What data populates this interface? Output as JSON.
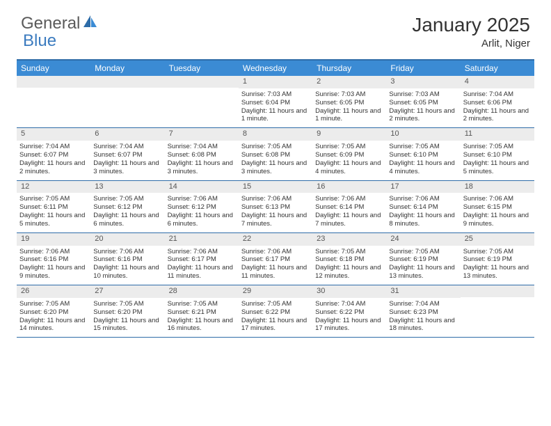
{
  "brand": {
    "part1": "General",
    "part2": "Blue"
  },
  "title": "January 2025",
  "location": "Arlit, Niger",
  "colors": {
    "header_bg": "#3b8bd4",
    "header_text": "#ffffff",
    "border": "#2e6ca8",
    "daynum_bg": "#ececec",
    "daynum_text": "#555555",
    "body_text": "#333333",
    "logo_gray": "#5a5a5a",
    "logo_blue": "#3b7bbf"
  },
  "day_names": [
    "Sunday",
    "Monday",
    "Tuesday",
    "Wednesday",
    "Thursday",
    "Friday",
    "Saturday"
  ],
  "weeks": [
    [
      {
        "empty": true
      },
      {
        "empty": true
      },
      {
        "empty": true
      },
      {
        "day": "1",
        "sunrise": "Sunrise: 7:03 AM",
        "sunset": "Sunset: 6:04 PM",
        "daylight": "Daylight: 11 hours and 1 minute."
      },
      {
        "day": "2",
        "sunrise": "Sunrise: 7:03 AM",
        "sunset": "Sunset: 6:05 PM",
        "daylight": "Daylight: 11 hours and 1 minute."
      },
      {
        "day": "3",
        "sunrise": "Sunrise: 7:03 AM",
        "sunset": "Sunset: 6:05 PM",
        "daylight": "Daylight: 11 hours and 2 minutes."
      },
      {
        "day": "4",
        "sunrise": "Sunrise: 7:04 AM",
        "sunset": "Sunset: 6:06 PM",
        "daylight": "Daylight: 11 hours and 2 minutes."
      }
    ],
    [
      {
        "day": "5",
        "sunrise": "Sunrise: 7:04 AM",
        "sunset": "Sunset: 6:07 PM",
        "daylight": "Daylight: 11 hours and 2 minutes."
      },
      {
        "day": "6",
        "sunrise": "Sunrise: 7:04 AM",
        "sunset": "Sunset: 6:07 PM",
        "daylight": "Daylight: 11 hours and 3 minutes."
      },
      {
        "day": "7",
        "sunrise": "Sunrise: 7:04 AM",
        "sunset": "Sunset: 6:08 PM",
        "daylight": "Daylight: 11 hours and 3 minutes."
      },
      {
        "day": "8",
        "sunrise": "Sunrise: 7:05 AM",
        "sunset": "Sunset: 6:08 PM",
        "daylight": "Daylight: 11 hours and 3 minutes."
      },
      {
        "day": "9",
        "sunrise": "Sunrise: 7:05 AM",
        "sunset": "Sunset: 6:09 PM",
        "daylight": "Daylight: 11 hours and 4 minutes."
      },
      {
        "day": "10",
        "sunrise": "Sunrise: 7:05 AM",
        "sunset": "Sunset: 6:10 PM",
        "daylight": "Daylight: 11 hours and 4 minutes."
      },
      {
        "day": "11",
        "sunrise": "Sunrise: 7:05 AM",
        "sunset": "Sunset: 6:10 PM",
        "daylight": "Daylight: 11 hours and 5 minutes."
      }
    ],
    [
      {
        "day": "12",
        "sunrise": "Sunrise: 7:05 AM",
        "sunset": "Sunset: 6:11 PM",
        "daylight": "Daylight: 11 hours and 5 minutes."
      },
      {
        "day": "13",
        "sunrise": "Sunrise: 7:05 AM",
        "sunset": "Sunset: 6:12 PM",
        "daylight": "Daylight: 11 hours and 6 minutes."
      },
      {
        "day": "14",
        "sunrise": "Sunrise: 7:06 AM",
        "sunset": "Sunset: 6:12 PM",
        "daylight": "Daylight: 11 hours and 6 minutes."
      },
      {
        "day": "15",
        "sunrise": "Sunrise: 7:06 AM",
        "sunset": "Sunset: 6:13 PM",
        "daylight": "Daylight: 11 hours and 7 minutes."
      },
      {
        "day": "16",
        "sunrise": "Sunrise: 7:06 AM",
        "sunset": "Sunset: 6:14 PM",
        "daylight": "Daylight: 11 hours and 7 minutes."
      },
      {
        "day": "17",
        "sunrise": "Sunrise: 7:06 AM",
        "sunset": "Sunset: 6:14 PM",
        "daylight": "Daylight: 11 hours and 8 minutes."
      },
      {
        "day": "18",
        "sunrise": "Sunrise: 7:06 AM",
        "sunset": "Sunset: 6:15 PM",
        "daylight": "Daylight: 11 hours and 9 minutes."
      }
    ],
    [
      {
        "day": "19",
        "sunrise": "Sunrise: 7:06 AM",
        "sunset": "Sunset: 6:16 PM",
        "daylight": "Daylight: 11 hours and 9 minutes."
      },
      {
        "day": "20",
        "sunrise": "Sunrise: 7:06 AM",
        "sunset": "Sunset: 6:16 PM",
        "daylight": "Daylight: 11 hours and 10 minutes."
      },
      {
        "day": "21",
        "sunrise": "Sunrise: 7:06 AM",
        "sunset": "Sunset: 6:17 PM",
        "daylight": "Daylight: 11 hours and 11 minutes."
      },
      {
        "day": "22",
        "sunrise": "Sunrise: 7:06 AM",
        "sunset": "Sunset: 6:17 PM",
        "daylight": "Daylight: 11 hours and 11 minutes."
      },
      {
        "day": "23",
        "sunrise": "Sunrise: 7:05 AM",
        "sunset": "Sunset: 6:18 PM",
        "daylight": "Daylight: 11 hours and 12 minutes."
      },
      {
        "day": "24",
        "sunrise": "Sunrise: 7:05 AM",
        "sunset": "Sunset: 6:19 PM",
        "daylight": "Daylight: 11 hours and 13 minutes."
      },
      {
        "day": "25",
        "sunrise": "Sunrise: 7:05 AM",
        "sunset": "Sunset: 6:19 PM",
        "daylight": "Daylight: 11 hours and 13 minutes."
      }
    ],
    [
      {
        "day": "26",
        "sunrise": "Sunrise: 7:05 AM",
        "sunset": "Sunset: 6:20 PM",
        "daylight": "Daylight: 11 hours and 14 minutes."
      },
      {
        "day": "27",
        "sunrise": "Sunrise: 7:05 AM",
        "sunset": "Sunset: 6:20 PM",
        "daylight": "Daylight: 11 hours and 15 minutes."
      },
      {
        "day": "28",
        "sunrise": "Sunrise: 7:05 AM",
        "sunset": "Sunset: 6:21 PM",
        "daylight": "Daylight: 11 hours and 16 minutes."
      },
      {
        "day": "29",
        "sunrise": "Sunrise: 7:05 AM",
        "sunset": "Sunset: 6:22 PM",
        "daylight": "Daylight: 11 hours and 17 minutes."
      },
      {
        "day": "30",
        "sunrise": "Sunrise: 7:04 AM",
        "sunset": "Sunset: 6:22 PM",
        "daylight": "Daylight: 11 hours and 17 minutes."
      },
      {
        "day": "31",
        "sunrise": "Sunrise: 7:04 AM",
        "sunset": "Sunset: 6:23 PM",
        "daylight": "Daylight: 11 hours and 18 minutes."
      },
      {
        "empty": true
      }
    ]
  ]
}
